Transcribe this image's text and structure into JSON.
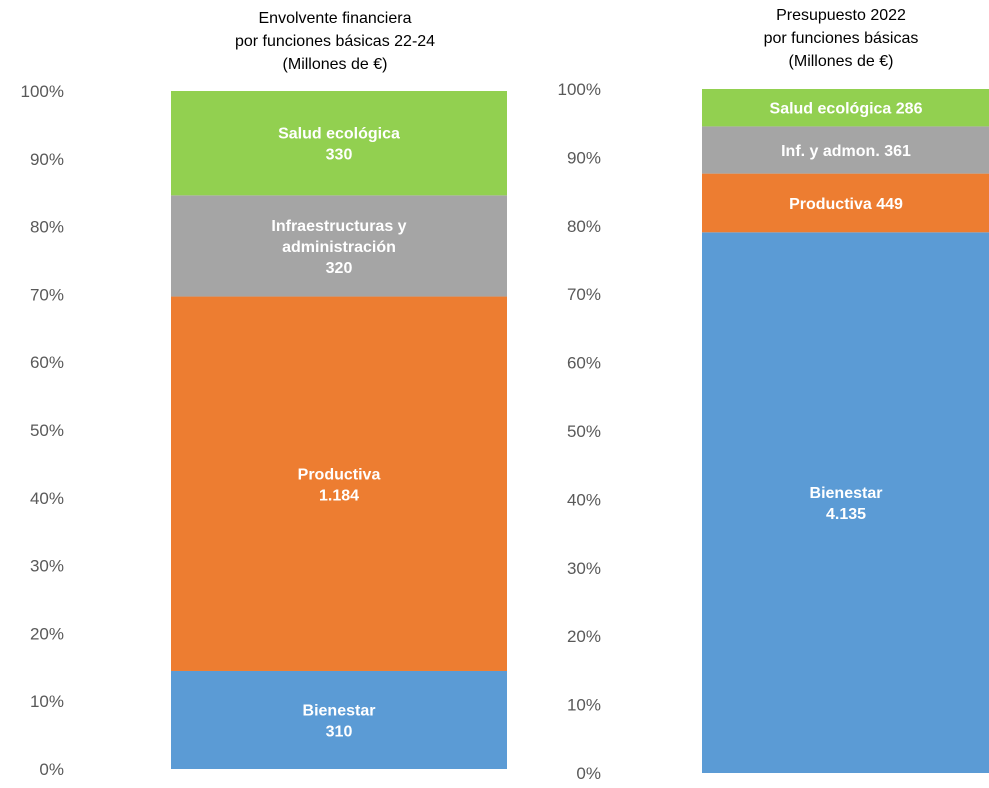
{
  "chart_data": [
    {
      "type": "bar",
      "stacked": "percent",
      "title_lines": [
        "Envolvente financiera",
        "por funciones básicas 22-24",
        "(Millones de €)"
      ],
      "ylim": [
        0,
        100
      ],
      "yticks": [
        "0%",
        "10%",
        "20%",
        "30%",
        "40%",
        "50%",
        "60%",
        "70%",
        "80%",
        "90%",
        "100%"
      ],
      "grid": false,
      "segments": [
        {
          "name": "Bienestar",
          "value": 310,
          "color": "#5B9BD5",
          "label_lines": [
            "Bienestar",
            "310"
          ]
        },
        {
          "name": "Productiva",
          "value": 1184,
          "color": "#ED7D31",
          "label_lines": [
            "Productiva",
            "1.184"
          ]
        },
        {
          "name": "Infraestructuras y administración",
          "value": 320,
          "color": "#A5A5A5",
          "label_lines": [
            "Infraestructuras y",
            "administración",
            "320"
          ]
        },
        {
          "name": "Salud ecológica",
          "value": 330,
          "color": "#92D050",
          "label_lines": [
            "Salud ecológica",
            "330"
          ]
        }
      ]
    },
    {
      "type": "bar",
      "stacked": "percent",
      "title_lines": [
        "Presupuesto 2022",
        "por funciones básicas",
        "(Millones de €)"
      ],
      "ylim": [
        0,
        100
      ],
      "yticks": [
        "0%",
        "10%",
        "20%",
        "30%",
        "40%",
        "50%",
        "60%",
        "70%",
        "80%",
        "90%",
        "100%"
      ],
      "grid": false,
      "segments": [
        {
          "name": "Bienestar",
          "value": 4135,
          "color": "#5B9BD5",
          "label_lines": [
            "Bienestar",
            "4.135"
          ]
        },
        {
          "name": "Productiva",
          "value": 449,
          "color": "#ED7D31",
          "label_lines": [
            "Productiva 449"
          ]
        },
        {
          "name": "Inf. y admon.",
          "value": 361,
          "color": "#A5A5A5",
          "label_lines": [
            "Inf. y admon.  361"
          ]
        },
        {
          "name": "Salud ecológica",
          "value": 286,
          "color": "#92D050",
          "label_lines": [
            "Salud ecológica 286"
          ]
        }
      ]
    }
  ]
}
